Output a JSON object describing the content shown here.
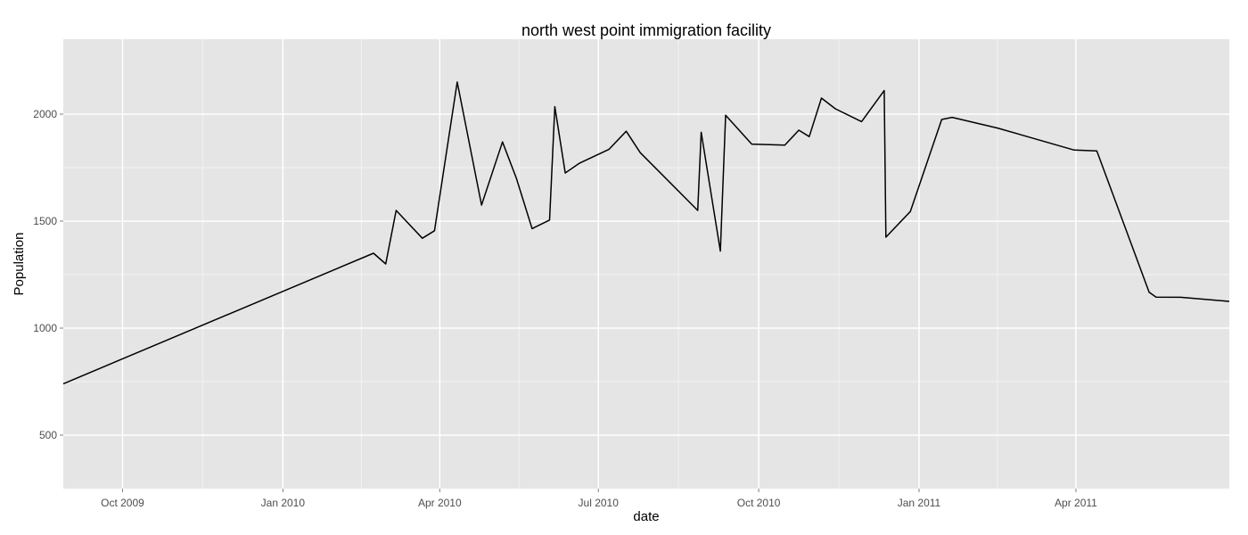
{
  "chart_data": {
    "type": "line",
    "title": "north west point immigration facility",
    "xlabel": "date",
    "ylabel": "Population",
    "x_axis_type": "date",
    "xlim": [
      "2009-08-28",
      "2011-06-28"
    ],
    "ylim": [
      250,
      2350
    ],
    "x_ticks": [
      {
        "value": "2009-10-01",
        "label": "Oct 2009"
      },
      {
        "value": "2010-01-01",
        "label": "Jan 2010"
      },
      {
        "value": "2010-04-01",
        "label": "Apr 2010"
      },
      {
        "value": "2010-07-01",
        "label": "Jul 2010"
      },
      {
        "value": "2010-10-01",
        "label": "Oct 2010"
      },
      {
        "value": "2011-01-01",
        "label": "Jan 2011"
      },
      {
        "value": "2011-04-01",
        "label": "Apr 2011"
      }
    ],
    "y_ticks": [
      500,
      1000,
      1500,
      2000
    ],
    "grid": true,
    "legend": "none",
    "colors": {
      "line": "#000000",
      "panel": "#e5e5e5",
      "grid_major": "#ffffff",
      "grid_minor": "#f2f2f2"
    },
    "series": [
      {
        "x": [
          "2009-08-28",
          "2010-02-22",
          "2010-03-01",
          "2010-03-07",
          "2010-03-22",
          "2010-03-29",
          "2010-04-11",
          "2010-04-25",
          "2010-05-07",
          "2010-05-15",
          "2010-05-24",
          "2010-06-03",
          "2010-06-06",
          "2010-06-12",
          "2010-06-20",
          "2010-07-07",
          "2010-07-17",
          "2010-07-25",
          "2010-08-27",
          "2010-08-29",
          "2010-09-09",
          "2010-09-12",
          "2010-09-27",
          "2010-10-16",
          "2010-10-24",
          "2010-10-30",
          "2010-11-06",
          "2010-11-14",
          "2010-11-29",
          "2010-12-12",
          "2010-12-13",
          "2010-12-27",
          "2011-01-14",
          "2011-01-20",
          "2011-02-15",
          "2011-03-31",
          "2011-04-13",
          "2011-05-13",
          "2011-05-17",
          "2011-05-31",
          "2011-06-28"
        ],
        "values": [
          740,
          1350,
          1300,
          1550,
          1420,
          1455,
          2150,
          1575,
          1870,
          1700,
          1465,
          1505,
          2035,
          1725,
          1770,
          1835,
          1920,
          1820,
          1550,
          1915,
          1360,
          1995,
          1860,
          1855,
          1925,
          1895,
          2075,
          2025,
          1965,
          2110,
          1425,
          1545,
          1975,
          1985,
          1935,
          1832,
          1828,
          1168,
          1145,
          1144,
          1125
        ]
      }
    ]
  }
}
